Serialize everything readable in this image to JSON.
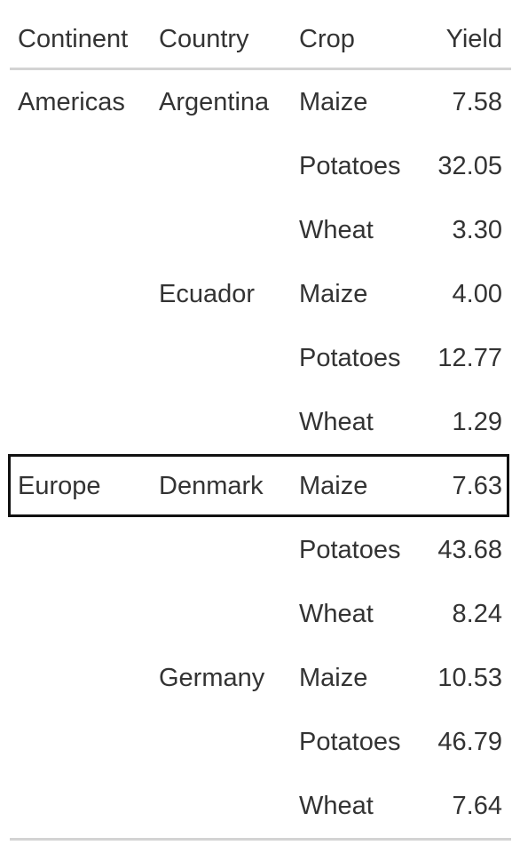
{
  "table": {
    "columns": [
      "Continent",
      "Country",
      "Crop",
      "Yield"
    ],
    "rows": [
      {
        "continent": "Americas",
        "country": "Argentina",
        "crop": "Maize",
        "yield": "7.58"
      },
      {
        "continent": "",
        "country": "",
        "crop": "Potatoes",
        "yield": "32.05"
      },
      {
        "continent": "",
        "country": "",
        "crop": "Wheat",
        "yield": "3.30"
      },
      {
        "continent": "",
        "country": "Ecuador",
        "crop": "Maize",
        "yield": "4.00"
      },
      {
        "continent": "",
        "country": "",
        "crop": "Potatoes",
        "yield": "12.77"
      },
      {
        "continent": "",
        "country": "",
        "crop": "Wheat",
        "yield": "1.29"
      },
      {
        "continent": "Europe",
        "country": "Denmark",
        "crop": "Maize",
        "yield": "7.63"
      },
      {
        "continent": "",
        "country": "",
        "crop": "Potatoes",
        "yield": "43.68"
      },
      {
        "continent": "",
        "country": "",
        "crop": "Wheat",
        "yield": "8.24"
      },
      {
        "continent": "",
        "country": "Germany",
        "crop": "Maize",
        "yield": "10.53"
      },
      {
        "continent": "",
        "country": "",
        "crop": "Potatoes",
        "yield": "46.79"
      },
      {
        "continent": "",
        "country": "",
        "crop": "Wheat",
        "yield": "7.64"
      }
    ],
    "highlighted_row": 6
  }
}
